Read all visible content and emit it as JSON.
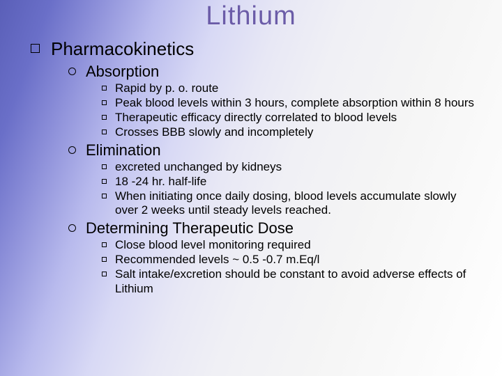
{
  "title": "Lithium",
  "colors": {
    "title_color": "#6b5ca8",
    "text_color": "#000000",
    "gradient_start": "#5a5fb8",
    "gradient_end": "#ffffff"
  },
  "typography": {
    "title_fontsize": 38,
    "l1_fontsize": 26,
    "l2_fontsize": 22,
    "l3_fontsize": 17,
    "font_family": "Arial"
  },
  "l1": {
    "text": "Pharmacokinetics"
  },
  "sections": {
    "absorption": {
      "heading": "Absorption",
      "items": [
        "Rapid by p. o. route",
        "Peak blood levels within 3 hours, complete absorption within 8 hours",
        "Therapeutic efficacy directly correlated to blood levels",
        "Crosses BBB slowly and incompletely"
      ]
    },
    "elimination": {
      "heading": "Elimination",
      "items": [
        "excreted unchanged by kidneys",
        "18 -24 hr. half-life",
        "When initiating once daily dosing, blood levels accumulate slowly over 2 weeks until steady levels reached."
      ]
    },
    "dose": {
      "heading": "Determining Therapeutic Dose",
      "items": [
        "Close blood level monitoring required",
        "Recommended levels ~ 0.5 -0.7 m.Eq/l",
        "Salt intake/excretion should be constant to avoid adverse effects of Lithium"
      ]
    }
  }
}
